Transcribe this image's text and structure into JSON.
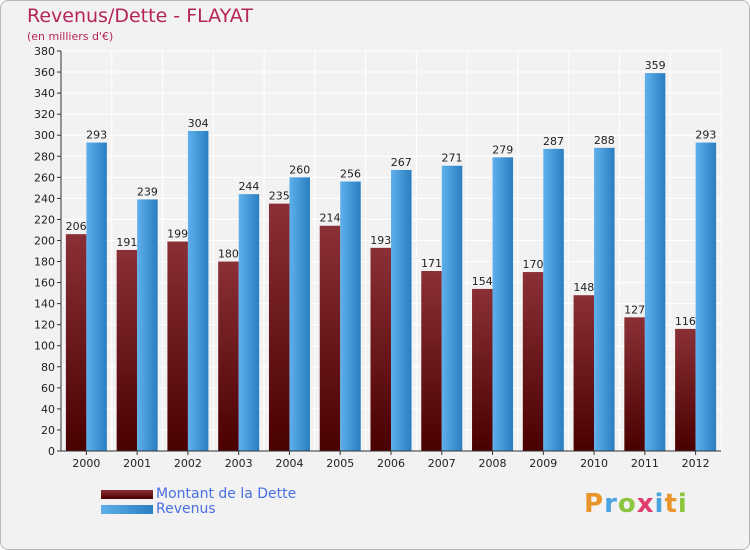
{
  "title": "Revenus/Dette - FLAYAT",
  "subtitle": "(en milliers d'€)",
  "logo_letters": [
    {
      "ch": "P",
      "color": "#e8962c"
    },
    {
      "ch": "r",
      "color": "#4aa4e0"
    },
    {
      "ch": "o",
      "color": "#8cc63e"
    },
    {
      "ch": "x",
      "color": "#e03c6c"
    },
    {
      "ch": "i",
      "color": "#4aa4e0"
    },
    {
      "ch": "t",
      "color": "#e8962c"
    },
    {
      "ch": "i",
      "color": "#8cc63e"
    }
  ],
  "colors": {
    "debt_top": "#8a3036",
    "debt_bottom": "#4a0000",
    "revenue_light": "#5fb0ec",
    "revenue_dark": "#2a7ec0",
    "grid": "#ffffff",
    "axis": "#333333"
  },
  "chart_data": {
    "type": "bar",
    "title": "Revenus/Dette - FLAYAT",
    "subtitle": "(en milliers d'€)",
    "categories": [
      "2000",
      "2001",
      "2002",
      "2003",
      "2004",
      "2005",
      "2006",
      "2007",
      "2008",
      "2009",
      "2010",
      "2011",
      "2012"
    ],
    "series": [
      {
        "name": "Montant de la Dette",
        "values": [
          206,
          191,
          199,
          180,
          235,
          214,
          193,
          171,
          154,
          170,
          148,
          127,
          116
        ]
      },
      {
        "name": "Revenus",
        "values": [
          293,
          239,
          304,
          244,
          260,
          256,
          267,
          271,
          279,
          287,
          288,
          359,
          293
        ]
      }
    ],
    "ylim": [
      0,
      380
    ],
    "yticks": [
      0,
      20,
      40,
      60,
      80,
      100,
      120,
      140,
      160,
      180,
      200,
      220,
      240,
      260,
      280,
      300,
      320,
      340,
      360,
      380
    ],
    "grid": true,
    "legend_position": "bottom-left"
  }
}
